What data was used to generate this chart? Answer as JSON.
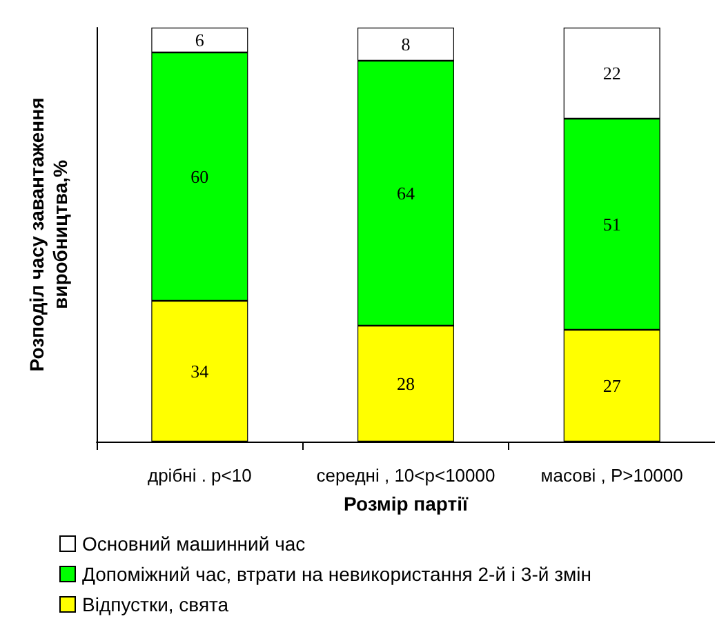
{
  "chart_data": {
    "type": "bar",
    "stacked": true,
    "xlabel": "Розмір партії",
    "ylabel": "Розподіл часу завантаження\nвиробництва,%",
    "categories": [
      "дрібні . p<10",
      "середні , 10<p<10000",
      "масові , P>10000"
    ],
    "series": [
      {
        "name": "Відпустки, свята",
        "color": "#ffff00",
        "values": [
          34,
          28,
          27
        ]
      },
      {
        "name": "Допоміжний час, втрати на невикористання 2-й і 3-й змін",
        "color": "#00ff00",
        "values": [
          60,
          64,
          51
        ]
      },
      {
        "name": "Основний машинний час",
        "color": "#ffffff",
        "values": [
          6,
          8,
          22
        ]
      }
    ],
    "ylim": [
      0,
      100
    ],
    "tick_labels": "x",
    "data_labels": true,
    "grid": false,
    "legend": "bottom"
  }
}
